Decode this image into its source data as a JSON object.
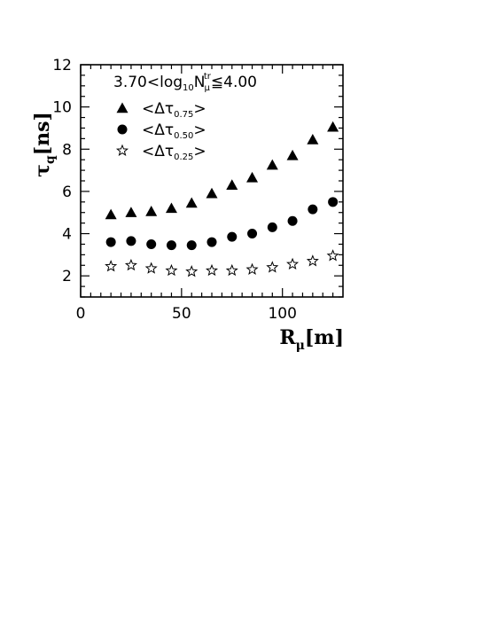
{
  "chart_data": {
    "type": "scatter",
    "title": "",
    "annotation": {
      "prefix": "3.70<log",
      "sub": "10",
      "var": "N",
      "var_sub": "μ",
      "var_sup": "tr",
      "suffix": "≦4.00"
    },
    "xlabel": {
      "main": "R",
      "sub": "μ",
      "unit": "[m]"
    },
    "ylabel": {
      "main": "τ",
      "sub": "q",
      "unit": "[ns]"
    },
    "xlim": [
      0,
      130
    ],
    "ylim": [
      1,
      12
    ],
    "xticks": [
      "0",
      "50",
      "100"
    ],
    "yticks": [
      "2",
      "4",
      "6",
      "8",
      "10",
      "12"
    ],
    "grid": false,
    "legend_position": "top-left",
    "series": [
      {
        "name": "<Δτ0.75>",
        "label_main": "<Δτ",
        "label_sub": "0.75",
        "label_end": ">",
        "marker": "triangle",
        "x": [
          15,
          25,
          35,
          45,
          55,
          65,
          75,
          85,
          95,
          105,
          115,
          125
        ],
        "y": [
          4.9,
          5.0,
          5.05,
          5.2,
          5.45,
          5.9,
          6.3,
          6.65,
          7.25,
          7.7,
          8.45,
          9.05
        ]
      },
      {
        "name": "<Δτ0.50>",
        "label_main": "<Δτ",
        "label_sub": "0.50",
        "label_end": ">",
        "marker": "circle",
        "x": [
          15,
          25,
          35,
          45,
          55,
          65,
          75,
          85,
          95,
          105,
          115,
          125
        ],
        "y": [
          3.6,
          3.65,
          3.5,
          3.45,
          3.45,
          3.6,
          3.85,
          4.0,
          4.3,
          4.6,
          5.15,
          5.5
        ]
      },
      {
        "name": "<Δτ0.25>",
        "label_main": "<Δτ",
        "label_sub": "0.25",
        "label_end": ">",
        "marker": "star",
        "x": [
          15,
          25,
          35,
          45,
          55,
          65,
          75,
          85,
          95,
          105,
          115,
          125
        ],
        "y": [
          2.45,
          2.5,
          2.35,
          2.25,
          2.2,
          2.25,
          2.25,
          2.3,
          2.4,
          2.55,
          2.7,
          2.95
        ]
      }
    ]
  }
}
